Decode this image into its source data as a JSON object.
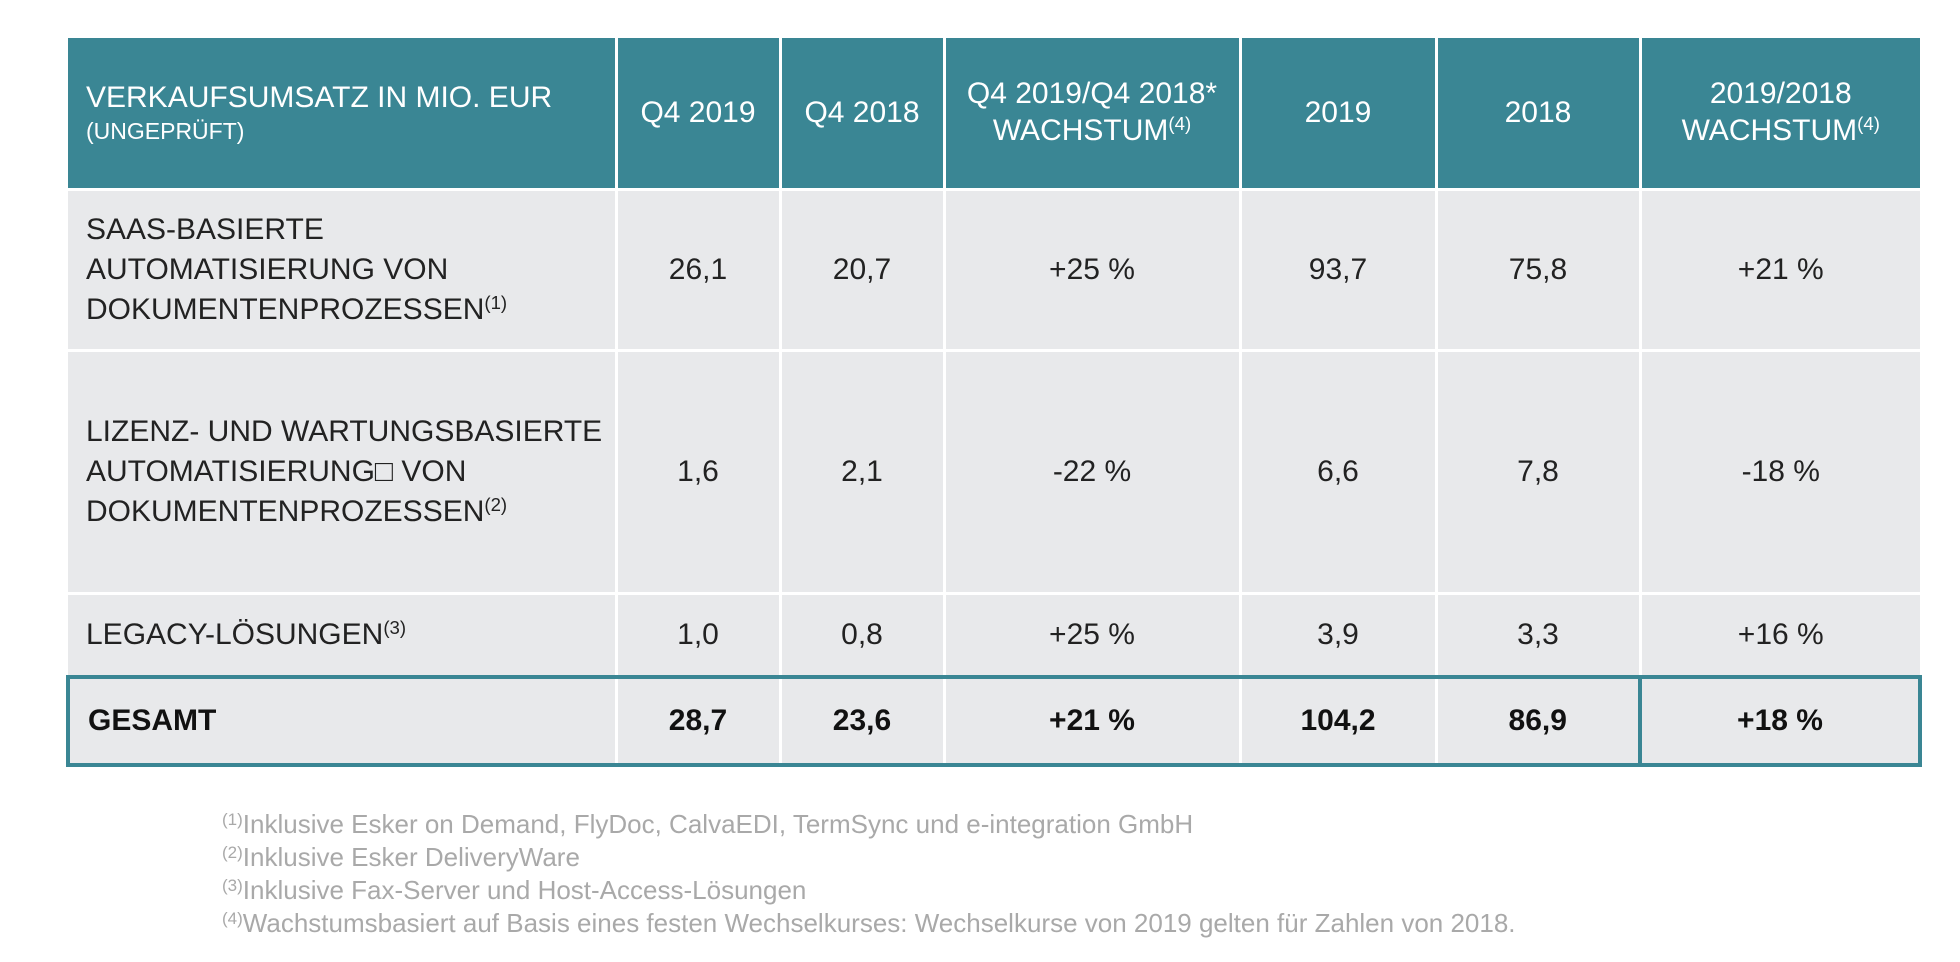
{
  "table": {
    "header": {
      "title": "VERKAUFSUMSATZ IN MIO. EUR",
      "subtitle": "(UNGEPRÜFT)",
      "col_q4_2019": "Q4 2019",
      "col_q4_2018": "Q4 2018",
      "col_q4_growth": "Q4 2019/Q4 2018* WACHSTUM",
      "col_q4_growth_note": "(4)",
      "col_2019": "2019",
      "col_2018": "2018",
      "col_year_growth": "2019/2018 WACHSTUM",
      "col_year_growth_note": "(4)"
    },
    "rows": [
      {
        "label": "SAAS-BASIERTE AUTOMATISIERUNG VON DOKUMENTENPROZESSEN",
        "note": "(1)",
        "q4_2019": "26,1",
        "q4_2018": "20,7",
        "q4_growth": "+25 %",
        "y2019": "93,7",
        "y2018": "75,8",
        "year_growth": "+21 %"
      },
      {
        "label": "LIZENZ- UND WARTUNGSBASIERTE AUTOMATISIERUNG□ VON DOKUMENTENPROZESSEN",
        "note": "(2)",
        "q4_2019": "1,6",
        "q4_2018": "2,1",
        "q4_growth": "-22 %",
        "y2019": "6,6",
        "y2018": "7,8",
        "year_growth": "-18 %"
      },
      {
        "label": "LEGACY-LÖSUNGEN",
        "note": "(3)",
        "q4_2019": "1,0",
        "q4_2018": "0,8",
        "q4_growth": "+25 %",
        "y2019": "3,9",
        "y2018": "3,3",
        "year_growth": "+16 %"
      }
    ],
    "total": {
      "label": "GESAMT",
      "q4_2019": "28,7",
      "q4_2018": "23,6",
      "q4_growth": "+21 %",
      "y2019": "104,2",
      "y2018": "86,9",
      "year_growth": "+18 %"
    }
  },
  "footnotes": [
    {
      "mark": "(1)",
      "text": "Inklusive Esker on Demand, FlyDoc, CalvaEDI, TermSync und e-integration GmbH"
    },
    {
      "mark": "(2)",
      "text": "Inklusive Esker DeliveryWare"
    },
    {
      "mark": "(3)",
      "text": "Inklusive Fax-Server und Host-Access-Lösungen"
    },
    {
      "mark": "(4)",
      "text": "Wachstumsbasiert auf Basis eines festen Wechselkurses: Wechselkurse von 2019 gelten für Zahlen von 2018."
    }
  ],
  "colors": {
    "header_bg": "#3a8694",
    "row_bg": "#e8e9eb",
    "footnote_text": "#a9a9a9"
  }
}
